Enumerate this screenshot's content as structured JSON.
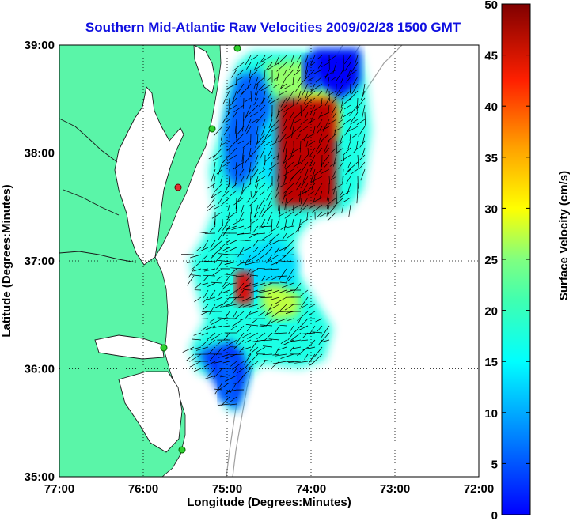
{
  "title": "Southern Mid-Atlantic Raw Velocities 2009/02/28 1500 GMT",
  "x_axis": {
    "label": "Longitude (Degrees:Minutes)",
    "ticks": [
      "77:00",
      "76:00",
      "75:00",
      "74:00",
      "73:00",
      "72:00"
    ]
  },
  "y_axis": {
    "label": "Latitude (Degrees:Minutes)",
    "ticks": [
      "39:00",
      "38:00",
      "37:00",
      "36:00",
      "35:00"
    ]
  },
  "colorbar": {
    "label": "Surface Velocity (cm/s)",
    "ticks": [
      "50",
      "45",
      "40",
      "35",
      "30",
      "25",
      "20",
      "15",
      "10",
      "5",
      "0"
    ],
    "range": [
      0,
      50
    ],
    "colormap": "jet"
  },
  "map": {
    "lon_range": [
      -77,
      -72
    ],
    "lat_range": [
      35,
      39
    ],
    "grid": "dotted",
    "land_color": "#5af5a8",
    "ocean_color": "#ffffff",
    "bathymetry_color": "#a0a0a0"
  },
  "chart_data": {
    "type": "heatmap",
    "title": "Southern Mid-Atlantic Raw Velocities 2009/02/28 1500 GMT",
    "xlabel": "Longitude (Degrees:Minutes)",
    "ylabel": "Latitude (Degrees:Minutes)",
    "xlim": [
      -77,
      -72
    ],
    "ylim": [
      35,
      39
    ],
    "color_range_cm_s": [
      0,
      50
    ],
    "regions": [
      {
        "name": "",
        "lon": [
          -74.4,
          -73.7
        ],
        "lat": [
          37.5,
          38.5
        ],
        "velocity_cm_s": 47
      },
      {
        "name": "",
        "lon": [
          -74.1,
          -73.9
        ],
        "lat": [
          38.6,
          38.9
        ],
        "velocity_cm_s": 8
      },
      {
        "name": "",
        "lon": [
          -74.9,
          -74.7
        ],
        "lat": [
          36.6,
          36.9
        ],
        "velocity_cm_s": 45
      },
      {
        "name": "",
        "lon": [
          -74.9,
          -74.6
        ],
        "lat": [
          36.2,
          36.5
        ],
        "velocity_cm_s": 20
      },
      {
        "name": "",
        "lon": [
          -75.1,
          -74.9
        ],
        "lat": [
          35.7,
          36.1
        ],
        "velocity_cm_s": 11
      }
    ]
  }
}
